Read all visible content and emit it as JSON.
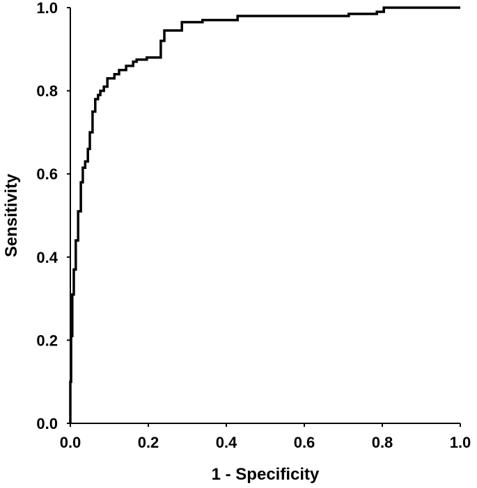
{
  "chart_data": {
    "type": "line",
    "title": "",
    "xlabel": "1 - Specificity",
    "ylabel": "Sensitivity",
    "xlim": [
      0,
      1
    ],
    "ylim": [
      0,
      1
    ],
    "xticks": [
      "0.0",
      "0.2",
      "0.4",
      "0.6",
      "0.8",
      "1.0"
    ],
    "yticks": [
      "0.0",
      "0.2",
      "0.4",
      "0.6",
      "0.8",
      "1.0"
    ],
    "grid": false,
    "line_color": "#000000",
    "series": [
      {
        "x": [
          0.0,
          0.0,
          0.002,
          0.002,
          0.005,
          0.005,
          0.009,
          0.009,
          0.014,
          0.014,
          0.02,
          0.02,
          0.027,
          0.027,
          0.032,
          0.032,
          0.038,
          0.038,
          0.045,
          0.045,
          0.05,
          0.05,
          0.057,
          0.057,
          0.064,
          0.064,
          0.071,
          0.071,
          0.077,
          0.077,
          0.086,
          0.086,
          0.095,
          0.095,
          0.113,
          0.113,
          0.125,
          0.125,
          0.143,
          0.143,
          0.161,
          0.161,
          0.17,
          0.17,
          0.196,
          0.196,
          0.232,
          0.232,
          0.241,
          0.241,
          0.286,
          0.286,
          0.339,
          0.339,
          0.429,
          0.429,
          0.714,
          0.714,
          0.786,
          0.786,
          0.804,
          0.804,
          1.0
        ],
        "y": [
          0.0,
          0.1,
          0.1,
          0.21,
          0.21,
          0.31,
          0.31,
          0.37,
          0.37,
          0.44,
          0.44,
          0.51,
          0.51,
          0.58,
          0.58,
          0.615,
          0.615,
          0.63,
          0.63,
          0.66,
          0.66,
          0.7,
          0.7,
          0.75,
          0.75,
          0.78,
          0.78,
          0.79,
          0.79,
          0.8,
          0.8,
          0.81,
          0.81,
          0.83,
          0.83,
          0.84,
          0.84,
          0.85,
          0.85,
          0.86,
          0.86,
          0.87,
          0.87,
          0.875,
          0.875,
          0.88,
          0.88,
          0.92,
          0.92,
          0.945,
          0.945,
          0.965,
          0.965,
          0.97,
          0.97,
          0.98,
          0.98,
          0.985,
          0.985,
          0.99,
          0.99,
          1.0,
          1.0
        ]
      }
    ]
  }
}
